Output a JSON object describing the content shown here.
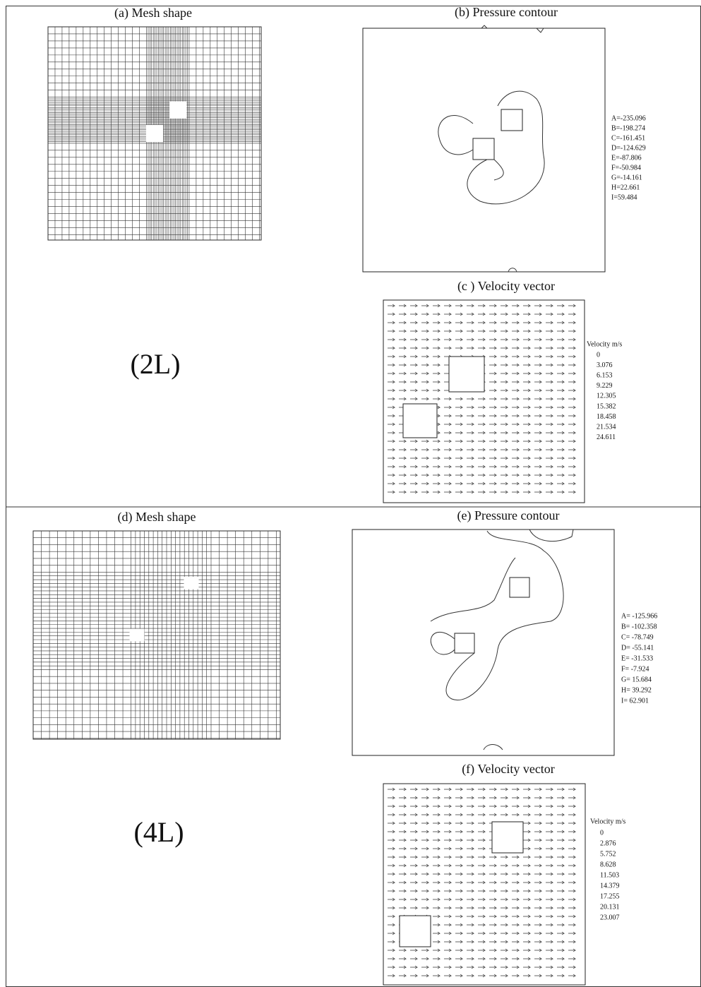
{
  "top": {
    "label": "(2L)",
    "mesh": {
      "title": "(a) Mesh shape"
    },
    "pressure": {
      "title": "(b) Pressure contour",
      "legend": [
        "A=-235.096",
        "B=-198.274",
        "C=-161.451",
        "D=-124.629",
        "E=-87.806",
        "F=-50.984",
        "G=-14.161",
        "H=22.661",
        "I=59.484"
      ]
    },
    "velocity": {
      "title": "(c ) Velocity  vector",
      "legend_title": "Velocity m/s",
      "legend": [
        "0",
        "3.076",
        "6.153",
        "9.229",
        "12.305",
        "15.382",
        "18.458",
        "21.534",
        "24.611"
      ]
    }
  },
  "bottom": {
    "label": "(4L)",
    "mesh": {
      "title": "(d) Mesh shape"
    },
    "pressure": {
      "title": "(e) Pressure contour",
      "legend": [
        "A= -125.966",
        "B= -102.358",
        "C= -78.749",
        "D= -55.141",
        "E= -31.533",
        "F= -7.924",
        "G= 15.684",
        "H= 39.292",
        "I= 62.901"
      ]
    },
    "velocity": {
      "title": "(f) Velocity  vector",
      "legend_title": "Velocity m/s",
      "legend": [
        "0",
        "2.876",
        "5.752",
        "8.628",
        "11.503",
        "14.379",
        "17.255",
        "20.131",
        "23.007"
      ]
    }
  }
}
